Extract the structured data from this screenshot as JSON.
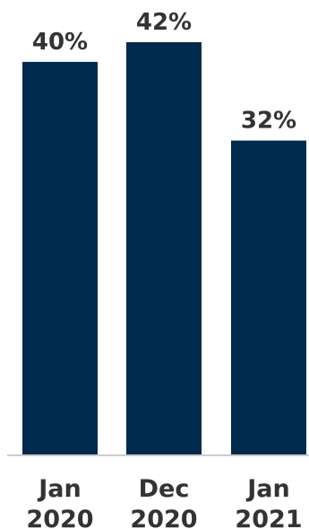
{
  "chart_data": {
    "type": "bar",
    "categories": [
      [
        "Jan",
        "2020"
      ],
      [
        "Dec",
        "2020"
      ],
      [
        "Jan",
        "2021"
      ]
    ],
    "values": [
      40,
      42,
      32
    ],
    "value_labels": [
      "40%",
      "42%",
      "32%"
    ],
    "title": "",
    "xlabel": "",
    "ylabel": "",
    "ylim": [
      0,
      42
    ],
    "grid": false,
    "legend": "none",
    "bar_color": "#002A4E",
    "axis_color": "#CCCCCC",
    "text_color": "#333333"
  }
}
